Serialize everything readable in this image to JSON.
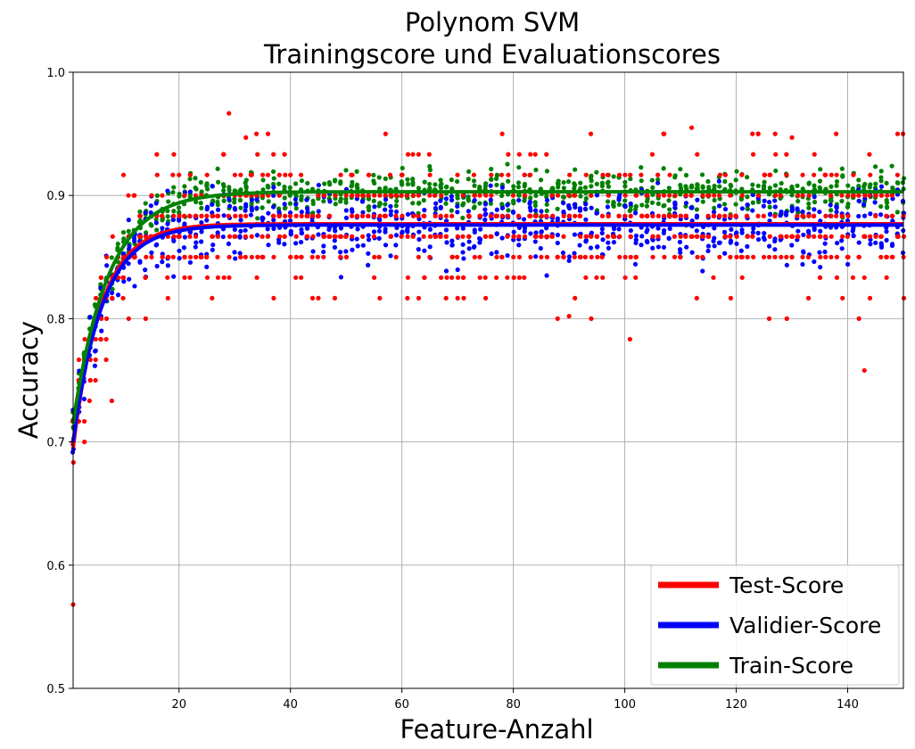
{
  "chart_data": {
    "type": "scatter",
    "title": "Polynom SVM",
    "subtitle": "Trainingscore und Evaluationscores",
    "xlabel": "Feature-Anzahl",
    "ylabel": "Accuracy",
    "xlim": [
      1,
      150
    ],
    "ylim": [
      0.5,
      1.0
    ],
    "x_ticks": [
      20,
      40,
      60,
      80,
      100,
      120,
      140
    ],
    "y_ticks": [
      0.5,
      0.6,
      0.7,
      0.8,
      0.9,
      1.0
    ],
    "grid": true,
    "legend_position": "bottom-right",
    "colors": {
      "test": "#ff0000",
      "valid": "#0000ff",
      "train": "#008000",
      "grid": "#b0b0b0"
    },
    "series": [
      {
        "name": "Test-Score",
        "color": "#ff0000",
        "curve_plateau": 0.877,
        "curve_start": 0.695,
        "curve_rate": 0.2,
        "point_spread": 0.03
      },
      {
        "name": "Validier-Score",
        "color": "#0000ff",
        "curve_plateau": 0.876,
        "curve_start": 0.7,
        "curve_rate": 0.19,
        "point_spread": 0.014
      },
      {
        "name": "Train-Score",
        "color": "#008000",
        "curve_plateau": 0.903,
        "curve_start": 0.715,
        "curve_rate": 0.16,
        "point_spread": 0.009
      }
    ],
    "points_per_feature": 5,
    "notable_outliers": [
      {
        "series": "Test-Score",
        "x": 1,
        "y": 0.568
      },
      {
        "series": "Test-Score",
        "x": 112,
        "y": 0.955
      },
      {
        "series": "Test-Score",
        "x": 143,
        "y": 0.758
      },
      {
        "series": "Test-Score",
        "x": 90,
        "y": 0.802
      },
      {
        "series": "Test-Score",
        "x": 32,
        "y": 0.947
      },
      {
        "series": "Test-Score",
        "x": 130,
        "y": 0.947
      }
    ]
  }
}
